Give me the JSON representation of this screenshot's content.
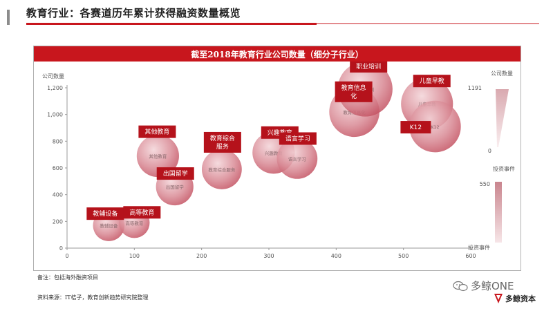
{
  "header": {
    "title": "教育行业：各赛道历年累计获得融资数量概览"
  },
  "chart_data": {
    "type": "scatter",
    "title": "截至2018年教育行业公司数量（细分子行业）",
    "ylabel": "公司数量",
    "xlim": [
      0,
      600
    ],
    "ylim": [
      0,
      1200
    ],
    "x_ticks": [
      "0",
      "100",
      "200",
      "300",
      "400",
      "500",
      "600"
    ],
    "y_ticks": [
      "0",
      "200",
      "400",
      "600",
      "800",
      "1,000",
      "1,200"
    ],
    "points": [
      {
        "label": "教辅设备",
        "x": 62,
        "y": 170,
        "size": 120
      },
      {
        "label": "高等教育",
        "x": 100,
        "y": 190,
        "size": 110
      },
      {
        "label": "其他教育",
        "x": 135,
        "y": 690,
        "size": 280
      },
      {
        "label": "出国留学",
        "x": 160,
        "y": 460,
        "size": 200
      },
      {
        "label": "教育综合服务",
        "x": 230,
        "y": 590,
        "size": 240
      },
      {
        "label": "兴趣教育",
        "x": 307,
        "y": 715,
        "size": 280
      },
      {
        "label": "语言学习",
        "x": 342,
        "y": 670,
        "size": 250
      },
      {
        "label": "教育信息化",
        "x": 427,
        "y": 1020,
        "size": 440
      },
      {
        "label": "职业培训",
        "x": 443,
        "y": 1190,
        "size": 550
      },
      {
        "label": "儿童早教",
        "x": 535,
        "y": 1080,
        "size": 480
      },
      {
        "label": "K12",
        "x": 547,
        "y": 910,
        "size": 470
      }
    ],
    "legend": {
      "position": "right",
      "size_legend_title": "公司数量",
      "size_max": "1191",
      "size_min": "0",
      "color_legend_title": "投资事件",
      "color_max": "550",
      "color_min": "投资事件"
    }
  },
  "footer": {
    "note": "备注：包括海外融资项目",
    "source": "资料来源：IT桔子，教育创新趋势研究院整理"
  },
  "branding": {
    "wechat_text": "多鲸ONE",
    "logo_text": "多鲸资本"
  },
  "colors": {
    "accent": "#c8161d",
    "bubble": "#c45a66"
  }
}
